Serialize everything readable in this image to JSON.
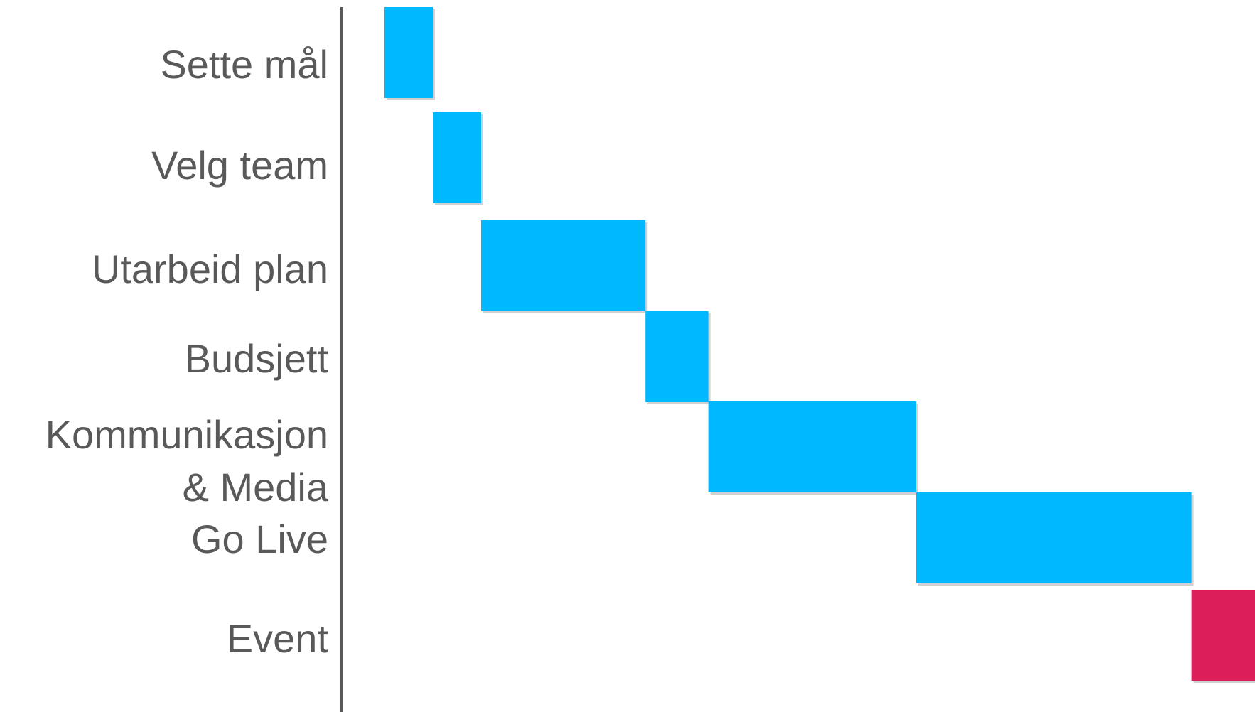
{
  "chart_data": {
    "type": "bar",
    "orientation": "horizontal-gantt",
    "title": "",
    "xlabel": "",
    "ylabel": "",
    "grid": false,
    "legend": "none",
    "xlim": [
      0,
      18.5
    ],
    "categories": [
      [
        "Sette mål"
      ],
      [
        "Velg team"
      ],
      [
        "Utarbeid plan"
      ],
      [
        "Budsjett"
      ],
      [
        "Kommunikasjon",
        "& Media"
      ],
      [
        "Go Live"
      ],
      [
        "Event"
      ]
    ],
    "tasks": [
      {
        "start": 0.0,
        "end": 1.0,
        "color": "#00B8FF"
      },
      {
        "start": 1.0,
        "end": 2.0,
        "color": "#00B8FF"
      },
      {
        "start": 2.0,
        "end": 5.4,
        "color": "#00B8FF"
      },
      {
        "start": 5.4,
        "end": 6.7,
        "color": "#00B8FF"
      },
      {
        "start": 6.7,
        "end": 11.0,
        "color": "#00B8FF"
      },
      {
        "start": 11.0,
        "end": 16.7,
        "color": "#00B8FF"
      },
      {
        "start": 16.7,
        "end": 18.5,
        "color": "#DC1E5A"
      }
    ],
    "colors": {
      "axis": "#595959",
      "label": "#595959",
      "task": "#00B8FF",
      "event": "#DC1E5A"
    }
  }
}
